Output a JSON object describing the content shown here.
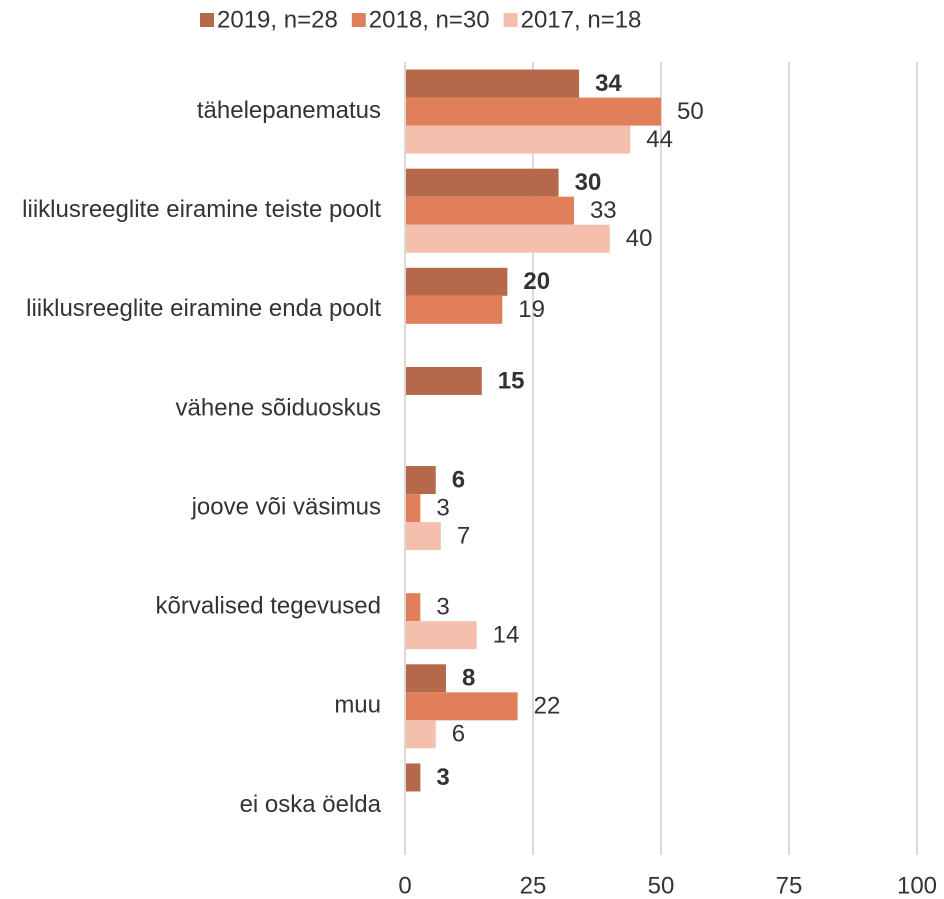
{
  "chart_data": {
    "type": "hbar",
    "categories": [
      "tähelepanematus",
      "liiklusreeglite eiramine teiste poolt",
      "liiklusreeglite eiramine enda poolt",
      "vähene sõiduoskus",
      "joove või väsimus",
      "kõrvalised tegevused",
      "muu",
      "ei oska öelda"
    ],
    "series": [
      {
        "name": "2019, n=28",
        "color": "#b5694a",
        "label_bold": true,
        "values": [
          34,
          30,
          20,
          15,
          6,
          null,
          8,
          3
        ]
      },
      {
        "name": "2018, n=30",
        "color": "#e07f5a",
        "label_bold": false,
        "values": [
          50,
          33,
          19,
          null,
          3,
          3,
          22,
          null
        ]
      },
      {
        "name": "2017, n=18",
        "color": "#f5bfae",
        "label_bold": false,
        "values": [
          44,
          40,
          null,
          null,
          7,
          14,
          6,
          null
        ]
      }
    ],
    "xlim": [
      0,
      100
    ],
    "xticks": [
      0,
      25,
      50,
      75,
      100
    ],
    "grid": true,
    "legend": "top"
  }
}
